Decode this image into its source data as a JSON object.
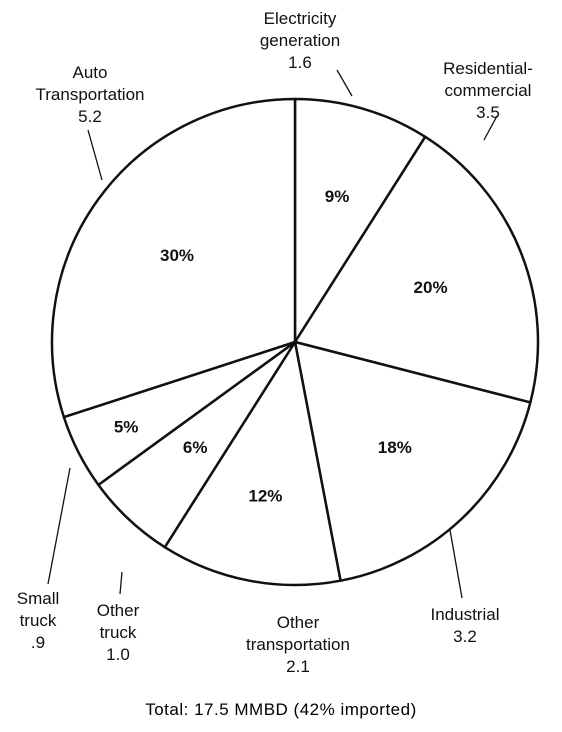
{
  "chart_data": {
    "type": "pie",
    "categories": [
      "Electricity generation",
      "Residential-commercial",
      "Industrial",
      "Other transportation",
      "Other truck",
      "Small truck",
      "Auto Transportation"
    ],
    "amount_labels": [
      "1.6",
      "3.5",
      "3.2",
      "2.1",
      "1.0",
      ".9",
      "5.2"
    ],
    "values": [
      9,
      20,
      18,
      12,
      6,
      5,
      30
    ],
    "value_labels": [
      "9%",
      "20%",
      "18%",
      "12%",
      "6%",
      "5%",
      "30%"
    ],
    "color": "#ffffff",
    "note": "Total: 17.5 MMBD (42% imported)"
  }
}
